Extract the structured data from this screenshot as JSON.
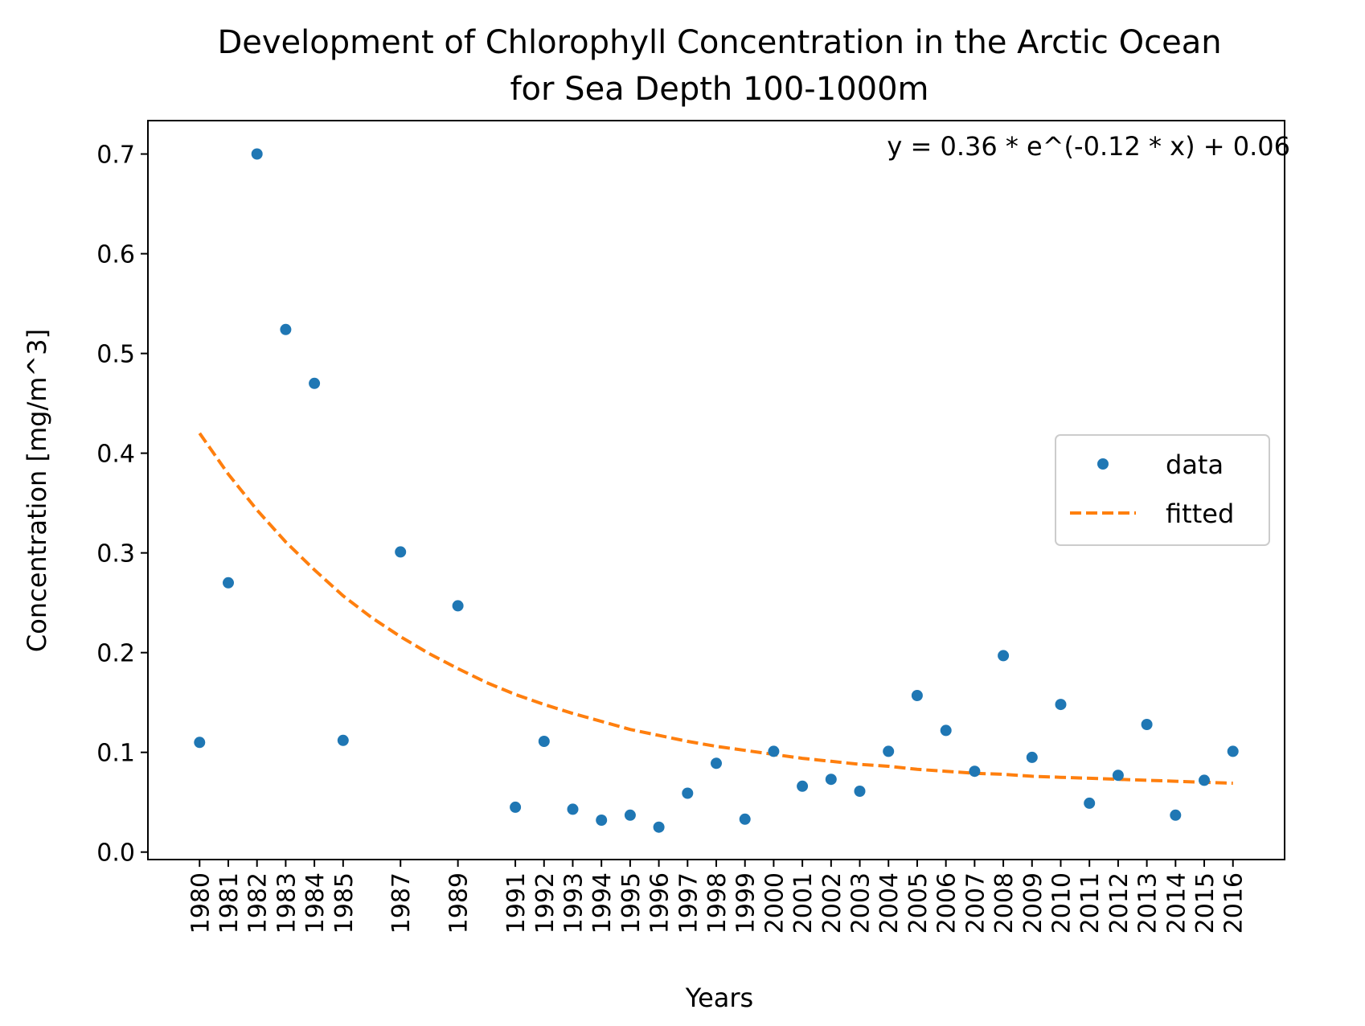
{
  "chart_data": {
    "type": "scatter",
    "title": [
      "Development of Chlorophyll Concentration in the Arctic Ocean",
      "for Sea Depth 100-1000m"
    ],
    "xlabel": "Years",
    "ylabel": "Concentration [mg/m^3]",
    "xlim": [
      1978.2,
      2017.8
    ],
    "ylim": [
      -0.0075,
      0.7335
    ],
    "x_ticks": [
      1980,
      1981,
      1982,
      1983,
      1984,
      1985,
      1987,
      1989,
      1991,
      1992,
      1993,
      1994,
      1995,
      1996,
      1997,
      1998,
      1999,
      2000,
      2001,
      2002,
      2003,
      2004,
      2005,
      2006,
      2007,
      2008,
      2009,
      2010,
      2011,
      2012,
      2013,
      2014,
      2015,
      2016
    ],
    "x_tick_labels": [
      "1980",
      "1981",
      "1982",
      "1983",
      "1984",
      "1985",
      "1987",
      "1989",
      "1991",
      "1992",
      "1993",
      "1994",
      "1995",
      "1996",
      "1997",
      "1998",
      "1999",
      "2000",
      "2001",
      "2002",
      "2003",
      "2004",
      "2005",
      "2006",
      "2007",
      "2008",
      "2009",
      "2010",
      "2011",
      "2012",
      "2013",
      "2014",
      "2015",
      "2016"
    ],
    "y_ticks": [
      0.0,
      0.1,
      0.2,
      0.3,
      0.4,
      0.5,
      0.6,
      0.7
    ],
    "y_tick_labels": [
      "0.0",
      "0.1",
      "0.2",
      "0.3",
      "0.4",
      "0.5",
      "0.6",
      "0.7"
    ],
    "annotation": "y = 0.36 * e^(-0.12 * x) + 0.06",
    "grid": false,
    "legend_position": "center-right",
    "series": [
      {
        "name": "data",
        "kind": "scatter",
        "color": "#1f77b4",
        "points": [
          [
            1980,
            0.11
          ],
          [
            1981,
            0.27
          ],
          [
            1982,
            0.7
          ],
          [
            1983,
            0.524
          ],
          [
            1984,
            0.47
          ],
          [
            1985,
            0.112
          ],
          [
            1987,
            0.301
          ],
          [
            1989,
            0.247
          ],
          [
            1991,
            0.045
          ],
          [
            1992,
            0.111
          ],
          [
            1993,
            0.043
          ],
          [
            1994,
            0.032
          ],
          [
            1995,
            0.037
          ],
          [
            1996,
            0.025
          ],
          [
            1997,
            0.059
          ],
          [
            1998,
            0.089
          ],
          [
            1999,
            0.033
          ],
          [
            2000,
            0.101
          ],
          [
            2001,
            0.066
          ],
          [
            2002,
            0.073
          ],
          [
            2003,
            0.061
          ],
          [
            2004,
            0.101
          ],
          [
            2005,
            0.157
          ],
          [
            2006,
            0.122
          ],
          [
            2007,
            0.081
          ],
          [
            2008,
            0.197
          ],
          [
            2009,
            0.095
          ],
          [
            2010,
            0.148
          ],
          [
            2011,
            0.049
          ],
          [
            2012,
            0.077
          ],
          [
            2013,
            0.128
          ],
          [
            2014,
            0.037
          ],
          [
            2015,
            0.072
          ],
          [
            2016,
            0.101
          ]
        ]
      },
      {
        "name": "fitted",
        "kind": "line",
        "style": "dashed",
        "color": "#ff7f0e",
        "points": [
          [
            1980,
            0.42
          ],
          [
            1981,
            0.379
          ],
          [
            1982,
            0.343
          ],
          [
            1983,
            0.311
          ],
          [
            1984,
            0.283
          ],
          [
            1985,
            0.257
          ],
          [
            1986,
            0.235
          ],
          [
            1987,
            0.216
          ],
          [
            1988,
            0.199
          ],
          [
            1989,
            0.184
          ],
          [
            1990,
            0.17
          ],
          [
            1991,
            0.158
          ],
          [
            1992,
            0.148
          ],
          [
            1993,
            0.139
          ],
          [
            1994,
            0.131
          ],
          [
            1995,
            0.123
          ],
          [
            1996,
            0.117
          ],
          [
            1997,
            0.111
          ],
          [
            1998,
            0.106
          ],
          [
            1999,
            0.102
          ],
          [
            2000,
            0.098
          ],
          [
            2001,
            0.094
          ],
          [
            2002,
            0.091
          ],
          [
            2003,
            0.088
          ],
          [
            2004,
            0.086
          ],
          [
            2005,
            0.083
          ],
          [
            2006,
            0.081
          ],
          [
            2007,
            0.079
          ],
          [
            2008,
            0.078
          ],
          [
            2009,
            0.076
          ],
          [
            2010,
            0.075
          ],
          [
            2011,
            0.074
          ],
          [
            2012,
            0.073
          ],
          [
            2013,
            0.072
          ],
          [
            2014,
            0.071
          ],
          [
            2015,
            0.07
          ],
          [
            2016,
            0.069
          ]
        ]
      }
    ]
  }
}
